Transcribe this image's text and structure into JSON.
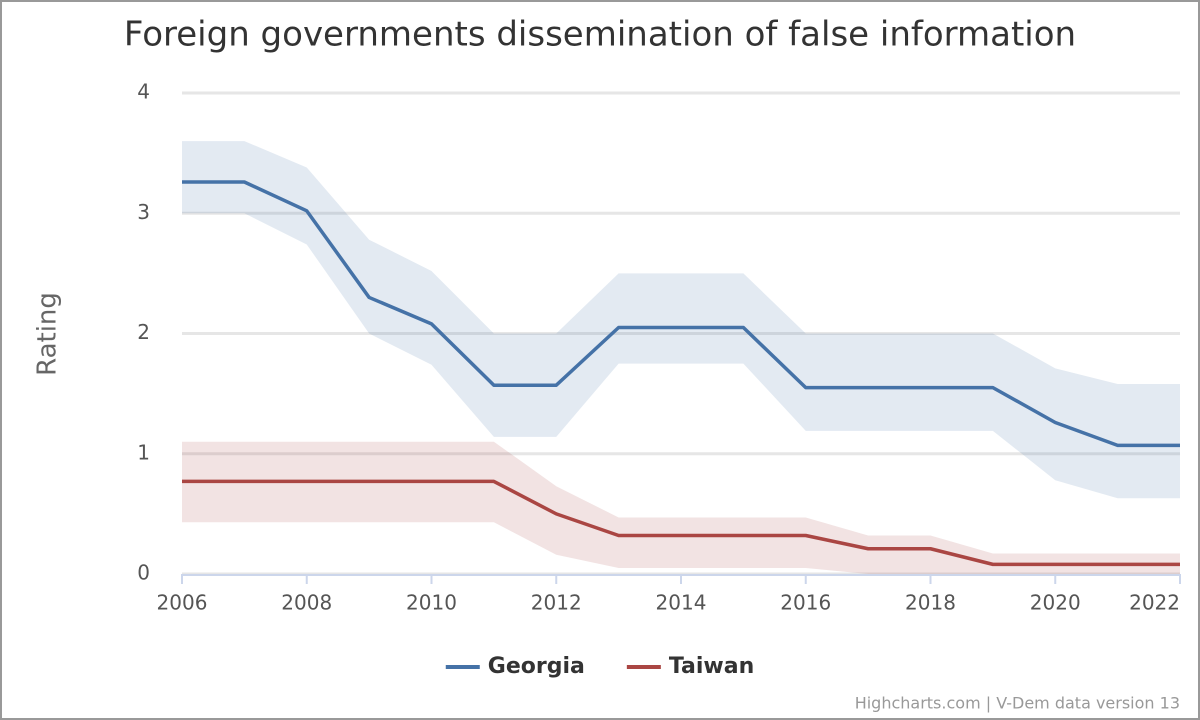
{
  "chart_data": {
    "type": "line",
    "title": "Foreign governments dissemination of false information",
    "y_label": "Rating",
    "credits": "Highcharts.com | V-Dem data version 13",
    "x": [
      2006,
      2007,
      2008,
      2009,
      2010,
      2011,
      2012,
      2013,
      2014,
      2015,
      2016,
      2017,
      2018,
      2019,
      2020,
      2021,
      2022
    ],
    "xlim": [
      2006,
      2022
    ],
    "xticks": [
      2006,
      2008,
      2010,
      2012,
      2014,
      2016,
      2018,
      2020,
      2022
    ],
    "ylim": [
      0,
      4
    ],
    "yticks": [
      0,
      1,
      2,
      3,
      4
    ],
    "grid": true,
    "legend": "bottom",
    "series": [
      {
        "name": "Georgia",
        "color": "#4572a7",
        "band_color": "rgba(69,114,167,0.15)",
        "values": [
          3.26,
          3.26,
          3.02,
          2.3,
          2.08,
          1.57,
          1.57,
          2.05,
          2.05,
          2.05,
          1.55,
          1.55,
          1.55,
          1.55,
          1.26,
          1.07,
          1.07
        ],
        "low": [
          3.0,
          3.0,
          2.74,
          2.0,
          1.74,
          1.14,
          1.14,
          1.75,
          1.75,
          1.75,
          1.19,
          1.19,
          1.19,
          1.19,
          0.78,
          0.63,
          0.63
        ],
        "high": [
          3.6,
          3.6,
          3.38,
          2.78,
          2.52,
          2.0,
          2.0,
          2.5,
          2.5,
          2.5,
          2.0,
          2.0,
          2.0,
          2.0,
          1.71,
          1.58,
          1.58
        ]
      },
      {
        "name": "Taiwan",
        "color": "#aa4643",
        "band_color": "rgba(170,70,67,0.15)",
        "values": [
          0.77,
          0.77,
          0.77,
          0.77,
          0.77,
          0.77,
          0.5,
          0.32,
          0.32,
          0.32,
          0.32,
          0.21,
          0.21,
          0.08,
          0.08,
          0.08,
          0.08
        ],
        "low": [
          0.43,
          0.43,
          0.43,
          0.43,
          0.43,
          0.43,
          0.16,
          0.05,
          0.05,
          0.05,
          0.05,
          0.0,
          0.0,
          0.0,
          0.0,
          0.0,
          0.0
        ],
        "high": [
          1.1,
          1.1,
          1.1,
          1.1,
          1.1,
          1.1,
          0.73,
          0.47,
          0.47,
          0.47,
          0.47,
          0.32,
          0.32,
          0.17,
          0.17,
          0.17,
          0.17
        ]
      }
    ]
  }
}
